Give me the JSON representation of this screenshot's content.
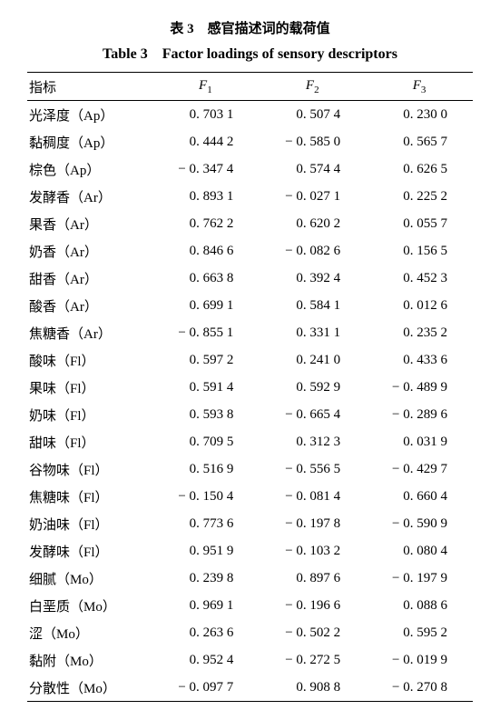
{
  "caption_cn": "表 3　感官描述词的载荷值",
  "caption_en": "Table 3　Factor loadings of sensory descriptors",
  "headers": {
    "h0": "指标",
    "h1": "F",
    "h1s": "1",
    "h2": "F",
    "h2s": "2",
    "h3": "F",
    "h3s": "3"
  },
  "rows": [
    {
      "label": "光泽度（Ap）",
      "f1": "0. 703 1",
      "f2": "0. 507 4",
      "f3": "0. 230 0"
    },
    {
      "label": "黏稠度（Ap）",
      "f1": "0. 444 2",
      "f2": "− 0. 585 0",
      "f3": "0. 565 7"
    },
    {
      "label": "棕色（Ap）",
      "f1": "− 0. 347 4",
      "f2": "0. 574 4",
      "f3": "0. 626 5"
    },
    {
      "label": "发酵香（Ar）",
      "f1": "0. 893 1",
      "f2": "− 0. 027 1",
      "f3": "0. 225 2"
    },
    {
      "label": "果香（Ar）",
      "f1": "0. 762 2",
      "f2": "0. 620 2",
      "f3": "0. 055 7"
    },
    {
      "label": "奶香（Ar）",
      "f1": "0. 846 6",
      "f2": "− 0. 082 6",
      "f3": "0. 156 5"
    },
    {
      "label": "甜香（Ar）",
      "f1": "0. 663 8",
      "f2": "0. 392 4",
      "f3": "0. 452 3"
    },
    {
      "label": "酸香（Ar）",
      "f1": "0. 699 1",
      "f2": "0. 584 1",
      "f3": "0. 012 6"
    },
    {
      "label": "焦糖香（Ar）",
      "f1": "− 0. 855 1",
      "f2": "0. 331 1",
      "f3": "0. 235 2"
    },
    {
      "label": "酸味（Fl）",
      "f1": "0. 597 2",
      "f2": "0. 241 0",
      "f3": "0. 433 6"
    },
    {
      "label": "果味（Fl）",
      "f1": "0. 591 4",
      "f2": "0. 592 9",
      "f3": "− 0. 489 9"
    },
    {
      "label": "奶味（Fl）",
      "f1": "0. 593 8",
      "f2": "− 0. 665 4",
      "f3": "− 0. 289 6"
    },
    {
      "label": "甜味（Fl）",
      "f1": "0. 709 5",
      "f2": "0. 312 3",
      "f3": "0. 031 9"
    },
    {
      "label": "谷物味（Fl）",
      "f1": "0. 516 9",
      "f2": "− 0. 556 5",
      "f3": "− 0. 429 7"
    },
    {
      "label": "焦糖味（Fl）",
      "f1": "− 0. 150 4",
      "f2": "− 0. 081 4",
      "f3": "0. 660 4"
    },
    {
      "label": "奶油味（Fl）",
      "f1": "0. 773 6",
      "f2": "− 0. 197 8",
      "f3": "− 0. 590 9"
    },
    {
      "label": "发酵味（Fl）",
      "f1": "0. 951 9",
      "f2": "− 0. 103 2",
      "f3": "0. 080 4"
    },
    {
      "label": "细腻（Mo）",
      "f1": "0. 239 8",
      "f2": "0. 897 6",
      "f3": "− 0. 197 9"
    },
    {
      "label": "白垩质（Mo）",
      "f1": "0. 969 1",
      "f2": "− 0. 196 6",
      "f3": "0. 088 6"
    },
    {
      "label": "涩（Mo）",
      "f1": "0. 263 6",
      "f2": "− 0. 502 2",
      "f3": "0. 595 2"
    },
    {
      "label": "黏附（Mo）",
      "f1": "0. 952 4",
      "f2": "− 0. 272 5",
      "f3": "− 0. 019 9"
    },
    {
      "label": "分散性（Mo）",
      "f1": "− 0. 097 7",
      "f2": "0. 908 8",
      "f3": "− 0. 270 8"
    }
  ]
}
